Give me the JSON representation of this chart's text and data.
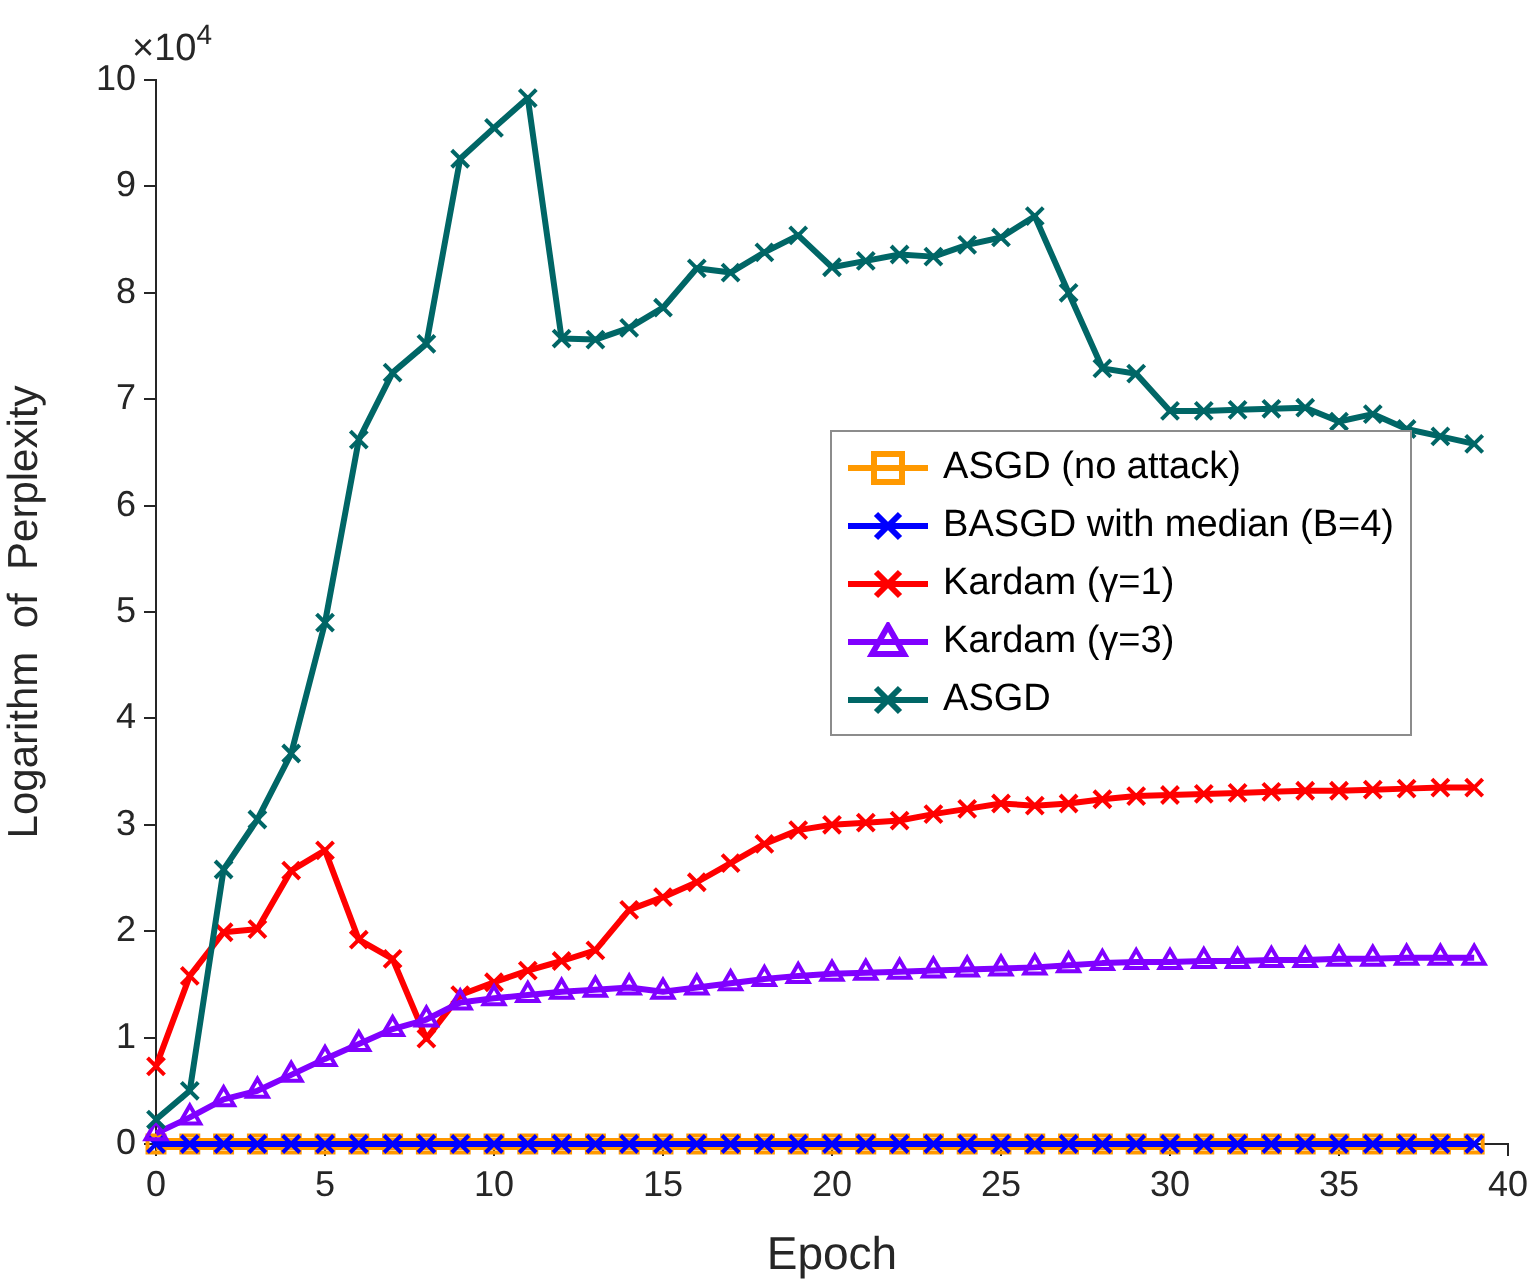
{
  "chart_data": {
    "type": "line",
    "xlabel": "Epoch",
    "ylabel": "Logarithm  of  Perplexity",
    "annotations": [
      "×10$^{4}$"
    ],
    "x": [
      0,
      1,
      2,
      3,
      4,
      5,
      6,
      7,
      8,
      9,
      10,
      11,
      12,
      13,
      14,
      15,
      16,
      17,
      18,
      19,
      20,
      21,
      22,
      23,
      24,
      25,
      26,
      27,
      28,
      29,
      30,
      31,
      32,
      33,
      34,
      35,
      36,
      37,
      38,
      39
    ],
    "xlim": [
      0,
      40
    ],
    "xticks": [
      0,
      5,
      10,
      15,
      20,
      25,
      30,
      35,
      40
    ],
    "ylim": [
      0,
      10
    ],
    "yticks": [
      0,
      1,
      2,
      3,
      4,
      5,
      6,
      7,
      8,
      9,
      10
    ],
    "grid": false,
    "legend": "right",
    "line_style": "solid",
    "series": [
      {
        "name": "ASGD (no attack)",
        "color": "#ff9900",
        "marker": "square",
        "values": [
          0,
          0,
          0,
          0,
          0,
          0,
          0,
          0,
          0,
          0,
          0,
          0,
          0,
          0,
          0,
          0,
          0,
          0,
          0,
          0,
          0,
          0,
          0,
          0,
          0,
          0,
          0,
          0,
          0,
          0,
          0,
          0,
          0,
          0,
          0,
          0,
          0,
          0,
          0,
          0
        ]
      },
      {
        "name": "BASGD with median (B=4)",
        "color": "#0000ff",
        "marker": "cross",
        "values": [
          0,
          0,
          0,
          0,
          0,
          0,
          0,
          0,
          0,
          0,
          0,
          0,
          0,
          0,
          0,
          0,
          0,
          0,
          0,
          0,
          0,
          0,
          0,
          0,
          0,
          0,
          0,
          0,
          0,
          0,
          0,
          0,
          0,
          0,
          0,
          0,
          0,
          0,
          0,
          0
        ]
      },
      {
        "name": "Kardam (γ=1)",
        "color": "#ff0000",
        "marker": "cross",
        "values": [
          0.73,
          1.58,
          1.99,
          2.02,
          2.57,
          2.76,
          1.92,
          1.74,
          0.99,
          1.4,
          1.52,
          1.63,
          1.72,
          1.82,
          2.2,
          2.32,
          2.46,
          2.64,
          2.82,
          2.95,
          3.0,
          3.02,
          3.04,
          3.1,
          3.15,
          3.2,
          3.18,
          3.2,
          3.24,
          3.27,
          3.28,
          3.29,
          3.3,
          3.31,
          3.32,
          3.32,
          3.33,
          3.34,
          3.35,
          3.35
        ]
      },
      {
        "name": "Kardam (γ=3)",
        "color": "#8000ff",
        "marker": "triangle",
        "values": [
          0.1,
          0.25,
          0.42,
          0.5,
          0.65,
          0.8,
          0.94,
          1.08,
          1.17,
          1.33,
          1.37,
          1.4,
          1.43,
          1.45,
          1.47,
          1.43,
          1.47,
          1.51,
          1.55,
          1.58,
          1.6,
          1.61,
          1.62,
          1.63,
          1.64,
          1.65,
          1.66,
          1.68,
          1.7,
          1.71,
          1.71,
          1.72,
          1.72,
          1.73,
          1.73,
          1.74,
          1.74,
          1.75,
          1.75,
          1.75
        ]
      },
      {
        "name": "ASGD",
        "color": "#006666",
        "marker": "cross",
        "values": [
          0.23,
          0.5,
          2.58,
          3.05,
          3.67,
          4.9,
          6.62,
          7.25,
          7.52,
          9.26,
          9.55,
          9.83,
          7.57,
          7.56,
          7.67,
          7.86,
          8.23,
          8.19,
          8.38,
          8.54,
          8.24,
          8.3,
          8.36,
          8.34,
          8.45,
          8.52,
          8.72,
          8.0,
          7.29,
          7.24,
          6.89,
          6.89,
          6.9,
          6.91,
          6.92,
          6.79,
          6.86,
          6.72,
          6.65,
          6.58
        ]
      }
    ]
  }
}
